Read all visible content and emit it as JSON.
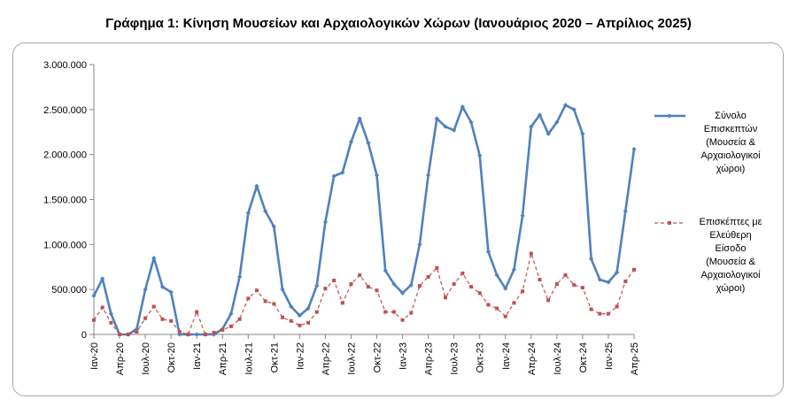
{
  "chart_data": {
    "type": "line",
    "title": "Γράφημα 1: Κίνηση Μουσείων και Αρχαιολογικών Χώρων (Ιανουάριος 2020 – Απρίλιος 2025)",
    "xlabel": "",
    "ylabel": "",
    "ylim": [
      0,
      3000000
    ],
    "yticks": [
      "0",
      "500.000",
      "1.000.000",
      "1.500.000",
      "2.000.000",
      "2.500.000",
      "3.000.000"
    ],
    "grid": false,
    "legend_position": "right",
    "x_tick_labels": [
      "Ιαν-20",
      "Απρ-20",
      "Ιουλ-20",
      "Οκτ-20",
      "Ιαν-21",
      "Απρ-21",
      "Ιουλ-21",
      "Οκτ-21",
      "Ιαν-22",
      "Απρ-22",
      "Ιουλ-22",
      "Οκτ-22",
      "Ιαν-23",
      "Απρ-23",
      "Ιουλ-23",
      "Οκτ-23",
      "Ιαν-24",
      "Απρ-24",
      "Ιουλ-24",
      "Οκτ-24",
      "Ιαν-25",
      "Απρ-25"
    ],
    "x": [
      "Ιαν-20",
      "Φεβ-20",
      "Μαρ-20",
      "Απρ-20",
      "Μαϊ-20",
      "Ιουν-20",
      "Ιουλ-20",
      "Αυγ-20",
      "Σεπ-20",
      "Οκτ-20",
      "Νοε-20",
      "Δεκ-20",
      "Ιαν-21",
      "Φεβ-21",
      "Μαρ-21",
      "Απρ-21",
      "Μαϊ-21",
      "Ιουν-21",
      "Ιουλ-21",
      "Αυγ-21",
      "Σεπ-21",
      "Οκτ-21",
      "Νοε-21",
      "Δεκ-21",
      "Ιαν-22",
      "Φεβ-22",
      "Μαρ-22",
      "Απρ-22",
      "Μαϊ-22",
      "Ιουν-22",
      "Ιουλ-22",
      "Αυγ-22",
      "Σεπ-22",
      "Οκτ-22",
      "Νοε-22",
      "Δεκ-22",
      "Ιαν-23",
      "Φεβ-23",
      "Μαρ-23",
      "Απρ-23",
      "Μαϊ-23",
      "Ιουν-23",
      "Ιουλ-23",
      "Αυγ-23",
      "Σεπ-23",
      "Οκτ-23",
      "Νοε-23",
      "Δεκ-23",
      "Ιαν-24",
      "Φεβ-24",
      "Μαρ-24",
      "Απρ-24",
      "Μαϊ-24",
      "Ιουν-24",
      "Ιουλ-24",
      "Αυγ-24",
      "Σεπ-24",
      "Οκτ-24",
      "Νοε-24",
      "Δεκ-24",
      "Ιαν-25",
      "Φεβ-25",
      "Μαρ-25",
      "Απρ-25"
    ],
    "series": [
      {
        "name": "Σύνολο Επισκεπτών (Μουσεία & Αρχαιολογικοί χώροι)",
        "color": "#4f81bd",
        "style": "solid",
        "marker": "diamond",
        "values": [
          430000,
          620000,
          230000,
          0,
          0,
          60000,
          500000,
          850000,
          530000,
          470000,
          0,
          0,
          0,
          0,
          0,
          60000,
          230000,
          640000,
          1350000,
          1650000,
          1370000,
          1200000,
          500000,
          310000,
          210000,
          290000,
          540000,
          1250000,
          1760000,
          1800000,
          2140000,
          2400000,
          2130000,
          1770000,
          710000,
          560000,
          460000,
          550000,
          1000000,
          1770000,
          2400000,
          2310000,
          2270000,
          2530000,
          2360000,
          1990000,
          920000,
          660000,
          510000,
          720000,
          1320000,
          2310000,
          2440000,
          2230000,
          2360000,
          2550000,
          2500000,
          2230000,
          840000,
          610000,
          580000,
          690000,
          1370000,
          2060000
        ]
      },
      {
        "name": "Επισκέπτες με Ελεύθερη Είσοδο (Μουσεία & Αρχαιολογικοί χώροι)",
        "color": "#c0504d",
        "style": "dashed",
        "marker": "square",
        "values": [
          160000,
          300000,
          130000,
          0,
          0,
          30000,
          180000,
          310000,
          170000,
          150000,
          30000,
          0,
          250000,
          0,
          20000,
          50000,
          90000,
          170000,
          400000,
          490000,
          370000,
          340000,
          190000,
          150000,
          100000,
          130000,
          250000,
          510000,
          600000,
          350000,
          560000,
          660000,
          530000,
          490000,
          250000,
          250000,
          160000,
          240000,
          540000,
          640000,
          740000,
          410000,
          560000,
          680000,
          530000,
          460000,
          330000,
          290000,
          200000,
          350000,
          480000,
          900000,
          610000,
          380000,
          560000,
          660000,
          550000,
          520000,
          280000,
          230000,
          230000,
          310000,
          590000,
          720000
        ]
      }
    ],
    "legend": [
      {
        "lines": [
          "Σύνολο",
          "Επισκεπτών",
          "(Μουσεία &",
          "Αρχαιολογικοί",
          "χώροι)"
        ]
      },
      {
        "lines": [
          "Επισκέπτες με",
          "Ελεύθερη",
          "Είσοδο",
          "(Μουσεία &",
          "Αρχαιολογικοί",
          "χώροι)"
        ]
      }
    ]
  }
}
